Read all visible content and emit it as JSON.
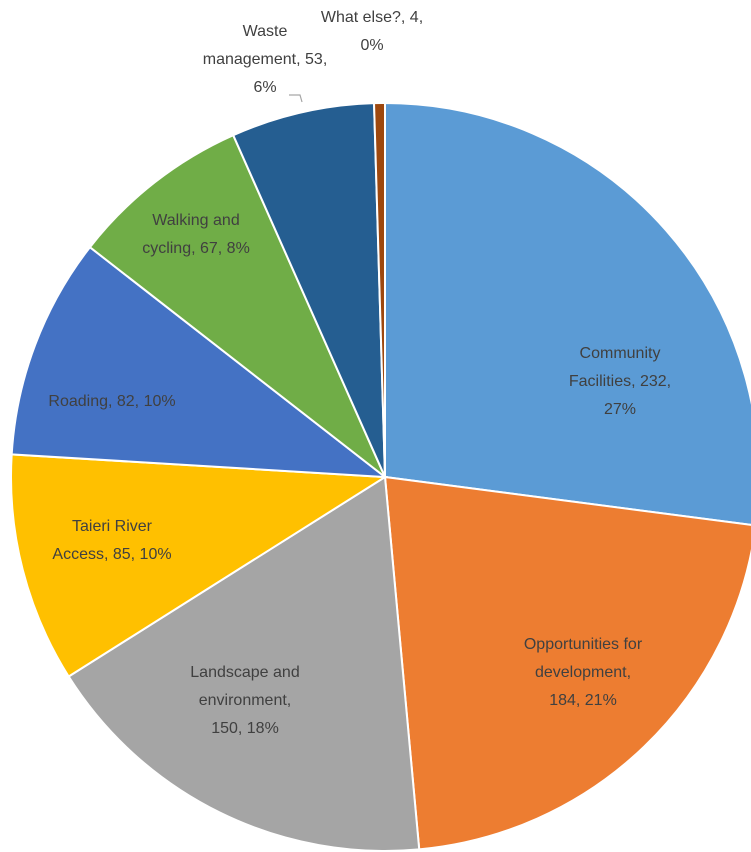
{
  "chart_data": {
    "type": "pie",
    "values": [
      232,
      184,
      150,
      85,
      82,
      67,
      53,
      4
    ],
    "colors": [
      "#5b9bd5",
      "#ed7d31",
      "#a5a5a5",
      "#ffc000",
      "#4472c4",
      "#70ad47",
      "#255e91",
      "#9e480e"
    ],
    "data_labels": [
      [
        "Community",
        "Facilities, 232,",
        "27%"
      ],
      [
        "Opportunities for",
        "development,",
        "184, 21%"
      ],
      [
        "Landscape and",
        "environment,",
        "150, 18%"
      ],
      [
        "Taieri River",
        "Access, 85, 10%"
      ],
      [
        "Roading, 82, 10%"
      ],
      [
        "Walking and",
        "cycling, 67, 8%"
      ],
      [
        "Waste",
        "management, 53,",
        "6%"
      ],
      [
        "What else?, 4,",
        "0%"
      ]
    ]
  }
}
